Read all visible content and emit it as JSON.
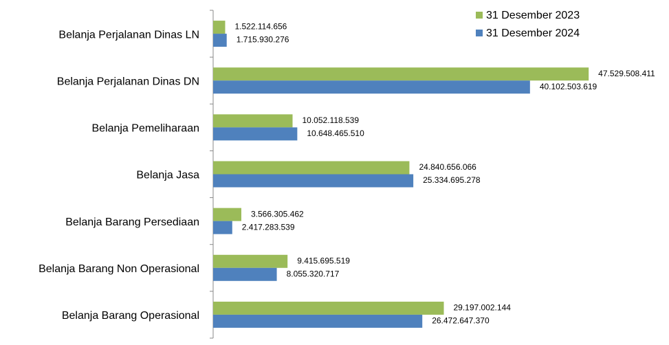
{
  "chart_data": {
    "type": "barh",
    "categories": [
      "Belanja Perjalanan Dinas LN",
      "Belanja Perjalanan Dinas DN",
      "Belanja Pemeliharaan",
      "Belanja Jasa",
      "Belanja Barang Persediaan",
      "Belanja Barang Non Operasional",
      "Belanja Barang Operasional"
    ],
    "series": [
      {
        "name": "31 Desember 2023",
        "color": "#9bbb59",
        "values": [
          1522114656,
          47529508411,
          10052118539,
          24840656066,
          3566305462,
          9415695519,
          29197002144
        ],
        "value_labels": [
          "1.522.114.656",
          "47.529.508.411",
          "10.052.118.539",
          "24.840.656.066",
          "3.566.305.462",
          "9.415.695.519",
          "29.197.002.144"
        ]
      },
      {
        "name": "31 Desember 2024",
        "color": "#4f81bd",
        "values": [
          1715930276,
          40102503619,
          10648465510,
          25334695278,
          2417283539,
          8055320717,
          26472647370
        ],
        "value_labels": [
          "1.715.930.276",
          "40.102.503.619",
          "10.648.465.510",
          "25.334.695.278",
          "2.417.283.539",
          "8.055.320.717",
          "26.472.647.370"
        ]
      }
    ],
    "xlim": [
      0,
      57000000000
    ],
    "legend": "upper right"
  }
}
